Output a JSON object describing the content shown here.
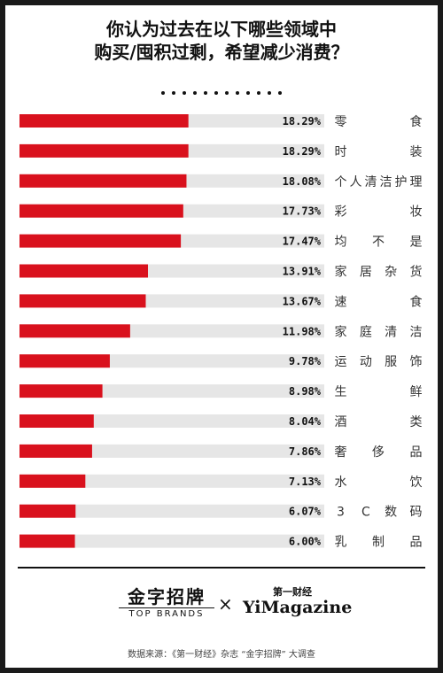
{
  "title_line1": "你认为过去在以下哪些领域中",
  "title_line2": "购买/囤积过剩，希望减少消费？",
  "colors": {
    "bar": "#d9111d",
    "track": "#e6e6e6",
    "ink": "#111111"
  },
  "chart_data": {
    "type": "bar",
    "orientation": "horizontal",
    "categories": [
      "零食",
      "时装",
      "个人清洁护理",
      "彩妆",
      "均不是",
      "家居杂货",
      "速食",
      "家庭清洁",
      "运动服饰",
      "生鲜",
      "酒类",
      "奢侈品",
      "水饮",
      "3C数码",
      "乳制品"
    ],
    "values": [
      18.29,
      18.29,
      18.08,
      17.73,
      17.47,
      13.91,
      13.67,
      11.98,
      9.78,
      8.98,
      8.04,
      7.86,
      7.13,
      6.07,
      6.0
    ],
    "labels": [
      "18.29%",
      "18.29%",
      "18.08%",
      "17.73%",
      "17.47%",
      "13.91%",
      "13.67%",
      "11.98%",
      "9.78%",
      "8.98%",
      "8.04%",
      "7.86%",
      "7.13%",
      "6.07%",
      "6.00%"
    ],
    "xlim": [
      0,
      33
    ]
  },
  "footer": {
    "brand1_cn": "金字招牌",
    "brand1_en": "TOP BRANDS",
    "times_symbol": "×",
    "brand2_cn": "第一财经",
    "brand2_en": "YiMagazine",
    "source": "数据来源：《第一财经》杂志 “金字招牌” 大调查"
  }
}
